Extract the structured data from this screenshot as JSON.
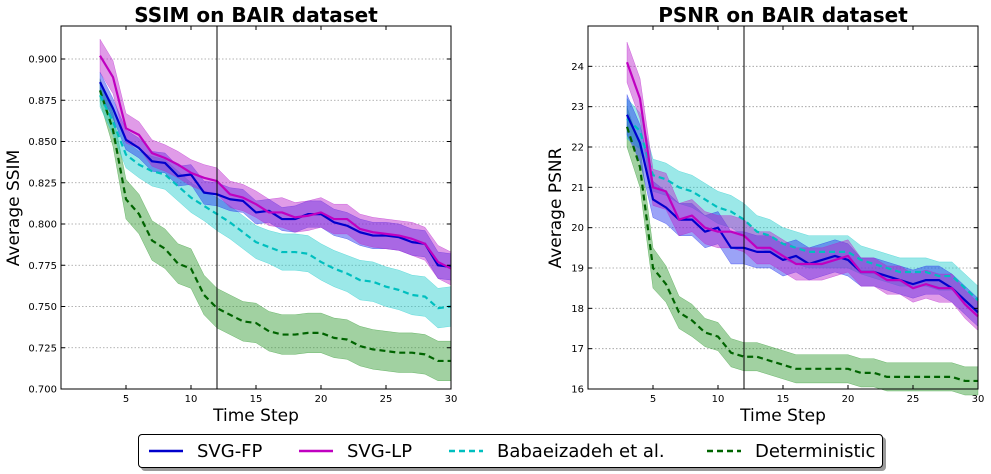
{
  "chart_data": [
    {
      "type": "line",
      "title": "SSIM on BAIR dataset",
      "xlabel": "Time Step",
      "ylabel": "Average SSIM",
      "xlim": [
        0,
        30
      ],
      "ylim": [
        0.7,
        0.92
      ],
      "xticks": [
        5,
        10,
        15,
        20,
        25,
        30
      ],
      "yticks": [
        0.7,
        0.725,
        0.75,
        0.775,
        0.8,
        0.825,
        0.85,
        0.875,
        0.9
      ],
      "ytick_labels": [
        "0.700",
        "0.725",
        "0.750",
        "0.775",
        "0.800",
        "0.825",
        "0.850",
        "0.875",
        "0.900"
      ],
      "grid": "horizontal dotted",
      "vline_x": 12,
      "x": [
        3,
        4,
        5,
        6,
        7,
        8,
        9,
        10,
        11,
        12,
        13,
        14,
        15,
        16,
        17,
        18,
        19,
        20,
        21,
        22,
        23,
        24,
        25,
        26,
        27,
        28,
        29,
        30
      ],
      "series": [
        {
          "name": "SVG-FP",
          "values": [
            0.886,
            0.87,
            0.851,
            0.846,
            0.838,
            0.837,
            0.829,
            0.83,
            0.819,
            0.818,
            0.815,
            0.814,
            0.807,
            0.808,
            0.803,
            0.803,
            0.806,
            0.806,
            0.801,
            0.799,
            0.795,
            0.793,
            0.793,
            0.792,
            0.789,
            0.788,
            0.775,
            0.774
          ],
          "band": [
            0.006,
            0.006,
            0.006,
            0.006,
            0.006,
            0.006,
            0.006,
            0.006,
            0.007,
            0.007,
            0.007,
            0.007,
            0.007,
            0.007,
            0.007,
            0.008,
            0.008,
            0.008,
            0.008,
            0.008,
            0.008,
            0.008,
            0.008,
            0.008,
            0.008,
            0.008,
            0.008,
            0.008
          ]
        },
        {
          "name": "SVG-LP",
          "values": [
            0.902,
            0.889,
            0.858,
            0.854,
            0.843,
            0.84,
            0.836,
            0.831,
            0.828,
            0.826,
            0.818,
            0.816,
            0.812,
            0.807,
            0.807,
            0.804,
            0.805,
            0.807,
            0.803,
            0.803,
            0.797,
            0.795,
            0.794,
            0.793,
            0.791,
            0.788,
            0.777,
            0.773
          ],
          "band": [
            0.01,
            0.01,
            0.009,
            0.008,
            0.008,
            0.008,
            0.008,
            0.008,
            0.008,
            0.008,
            0.008,
            0.008,
            0.008,
            0.008,
            0.009,
            0.009,
            0.009,
            0.009,
            0.009,
            0.009,
            0.009,
            0.009,
            0.009,
            0.009,
            0.01,
            0.01,
            0.01,
            0.01
          ]
        },
        {
          "name": "Babaeizadeh et al.",
          "values": [
            0.878,
            0.862,
            0.842,
            0.836,
            0.832,
            0.83,
            0.823,
            0.816,
            0.811,
            0.806,
            0.801,
            0.795,
            0.789,
            0.786,
            0.783,
            0.783,
            0.782,
            0.777,
            0.773,
            0.77,
            0.766,
            0.765,
            0.762,
            0.76,
            0.757,
            0.756,
            0.749,
            0.75
          ],
          "band": [
            0.007,
            0.008,
            0.008,
            0.008,
            0.009,
            0.009,
            0.009,
            0.009,
            0.009,
            0.01,
            0.01,
            0.01,
            0.01,
            0.01,
            0.011,
            0.011,
            0.011,
            0.011,
            0.011,
            0.011,
            0.012,
            0.012,
            0.012,
            0.012,
            0.012,
            0.012,
            0.012,
            0.012
          ]
        },
        {
          "name": "Deterministic",
          "values": [
            0.881,
            0.857,
            0.815,
            0.806,
            0.79,
            0.785,
            0.776,
            0.773,
            0.757,
            0.749,
            0.745,
            0.741,
            0.74,
            0.735,
            0.733,
            0.733,
            0.734,
            0.734,
            0.731,
            0.73,
            0.726,
            0.724,
            0.723,
            0.722,
            0.722,
            0.721,
            0.717,
            0.717
          ],
          "band": [
            0.007,
            0.01,
            0.012,
            0.012,
            0.012,
            0.012,
            0.012,
            0.012,
            0.012,
            0.012,
            0.012,
            0.012,
            0.012,
            0.012,
            0.012,
            0.012,
            0.012,
            0.012,
            0.012,
            0.012,
            0.012,
            0.012,
            0.012,
            0.012,
            0.012,
            0.012,
            0.012,
            0.012
          ]
        }
      ]
    },
    {
      "type": "line",
      "title": "PSNR on BAIR dataset",
      "xlabel": "Time Step",
      "ylabel": "Average PSNR",
      "xlim": [
        0,
        30
      ],
      "ylim": [
        16,
        25
      ],
      "xticks": [
        5,
        10,
        15,
        20,
        25,
        30
      ],
      "yticks": [
        16,
        17,
        18,
        19,
        20,
        21,
        22,
        23,
        24
      ],
      "ytick_labels": [
        "16",
        "17",
        "18",
        "19",
        "20",
        "21",
        "22",
        "23",
        "24"
      ],
      "grid": "horizontal dotted",
      "vline_x": 12,
      "x": [
        3,
        4,
        5,
        6,
        7,
        8,
        9,
        10,
        11,
        12,
        13,
        14,
        15,
        16,
        17,
        18,
        19,
        20,
        21,
        22,
        23,
        24,
        25,
        26,
        27,
        28,
        29,
        30
      ],
      "series": [
        {
          "name": "SVG-FP",
          "values": [
            22.8,
            22.1,
            20.7,
            20.5,
            20.2,
            20.2,
            19.9,
            20.0,
            19.5,
            19.5,
            19.4,
            19.4,
            19.2,
            19.3,
            19.1,
            19.2,
            19.3,
            19.2,
            18.9,
            18.9,
            18.8,
            18.7,
            18.6,
            18.7,
            18.7,
            18.5,
            18.2,
            17.9
          ],
          "band": [
            0.5,
            0.45,
            0.45,
            0.4,
            0.4,
            0.4,
            0.4,
            0.4,
            0.4,
            0.4,
            0.4,
            0.4,
            0.4,
            0.4,
            0.4,
            0.4,
            0.4,
            0.4,
            0.35,
            0.35,
            0.35,
            0.35,
            0.35,
            0.35,
            0.35,
            0.35,
            0.35,
            0.35
          ]
        },
        {
          "name": "SVG-LP",
          "values": [
            24.1,
            23.2,
            21.0,
            20.9,
            20.2,
            20.3,
            20.0,
            19.9,
            19.9,
            19.8,
            19.5,
            19.5,
            19.3,
            19.1,
            19.1,
            19.1,
            19.2,
            19.3,
            18.9,
            18.9,
            18.7,
            18.7,
            18.5,
            18.6,
            18.5,
            18.5,
            18.1,
            17.8
          ],
          "band": [
            0.5,
            0.5,
            0.45,
            0.45,
            0.4,
            0.4,
            0.4,
            0.4,
            0.4,
            0.4,
            0.4,
            0.4,
            0.4,
            0.4,
            0.4,
            0.4,
            0.4,
            0.4,
            0.35,
            0.35,
            0.35,
            0.35,
            0.35,
            0.35,
            0.35,
            0.35,
            0.35,
            0.35
          ]
        },
        {
          "name": "Babaeizadeh et al.",
          "values": [
            22.7,
            22.4,
            21.3,
            21.2,
            21.0,
            20.9,
            20.7,
            20.5,
            20.4,
            20.2,
            19.9,
            19.8,
            19.6,
            19.5,
            19.4,
            19.4,
            19.4,
            19.4,
            19.2,
            19.1,
            19.0,
            18.9,
            18.9,
            18.9,
            18.8,
            18.8,
            18.5,
            18.2
          ],
          "band": [
            0.5,
            0.45,
            0.4,
            0.4,
            0.4,
            0.4,
            0.4,
            0.4,
            0.4,
            0.4,
            0.4,
            0.4,
            0.4,
            0.4,
            0.4,
            0.4,
            0.4,
            0.4,
            0.35,
            0.35,
            0.35,
            0.35,
            0.35,
            0.35,
            0.35,
            0.35,
            0.35,
            0.35
          ]
        },
        {
          "name": "Deterministic",
          "values": [
            22.5,
            21.5,
            19.0,
            18.6,
            17.9,
            17.7,
            17.4,
            17.3,
            16.9,
            16.8,
            16.8,
            16.7,
            16.6,
            16.5,
            16.5,
            16.5,
            16.5,
            16.5,
            16.4,
            16.4,
            16.3,
            16.3,
            16.3,
            16.3,
            16.3,
            16.3,
            16.2,
            16.2
          ],
          "band": [
            0.5,
            0.5,
            0.5,
            0.45,
            0.4,
            0.4,
            0.35,
            0.35,
            0.35,
            0.35,
            0.35,
            0.35,
            0.35,
            0.35,
            0.35,
            0.35,
            0.35,
            0.35,
            0.35,
            0.35,
            0.35,
            0.35,
            0.35,
            0.35,
            0.35,
            0.35,
            0.35,
            0.35
          ]
        }
      ]
    }
  ],
  "legend": [
    {
      "label": "SVG-FP",
      "color": "#0000cc",
      "dash": "solid"
    },
    {
      "label": "SVG-LP",
      "color": "#c000c0",
      "dash": "solid"
    },
    {
      "label": "Babaeizadeh et al.",
      "color": "#00bfbf",
      "dash": "dashed"
    },
    {
      "label": "Deterministic",
      "color": "#006400",
      "dash": "dashed"
    }
  ],
  "colors": {
    "SVG-FP": {
      "line": "#0000cc",
      "fill": "#2233ee"
    },
    "SVG-LP": {
      "line": "#c000c0",
      "fill": "#bb22cc"
    },
    "Babaeizadeh et al.": {
      "line": "#00bfbf",
      "fill": "#22cccc"
    },
    "Deterministic": {
      "line": "#006400",
      "fill": "#2e9a2e"
    }
  }
}
